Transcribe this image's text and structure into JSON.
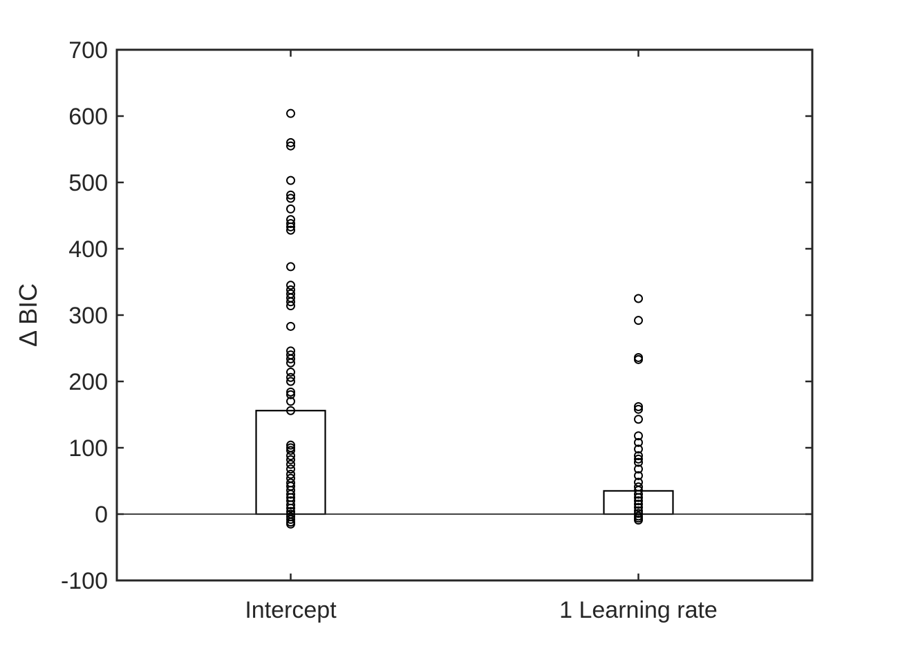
{
  "chart_data": {
    "type": "bar",
    "title": "",
    "xlabel": "",
    "ylabel": "Δ BIC",
    "categories": [
      "Intercept",
      "1 Learning rate"
    ],
    "values": [
      156,
      35
    ],
    "ylim": [
      -100,
      700
    ],
    "yticks": [
      -100,
      0,
      100,
      200,
      300,
      400,
      500,
      600,
      700
    ],
    "grid": false,
    "legend": "none",
    "baseline": 0,
    "points": [
      [
        604,
        560,
        555,
        503,
        481,
        476,
        460,
        444,
        438,
        433,
        428,
        373,
        345,
        338,
        332,
        326,
        320,
        314,
        283,
        246,
        240,
        234,
        228,
        214,
        206,
        200,
        184,
        180,
        170,
        156,
        104,
        100,
        96,
        88,
        82,
        75,
        68,
        60,
        54,
        47,
        42,
        36,
        30,
        25,
        20,
        14,
        9,
        4,
        0,
        -4,
        -8,
        -12,
        -15
      ],
      [
        325,
        292,
        236,
        233,
        162,
        158,
        143,
        118,
        108,
        98,
        88,
        83,
        78,
        68,
        58,
        48,
        41,
        36,
        30,
        25,
        20,
        15,
        10,
        5,
        1,
        -3,
        -6,
        -9
      ]
    ],
    "colors": {
      "axis": "#262626",
      "bar_edge": "#000000",
      "bar_fill": "#ffffff",
      "marker": "#000000"
    }
  }
}
